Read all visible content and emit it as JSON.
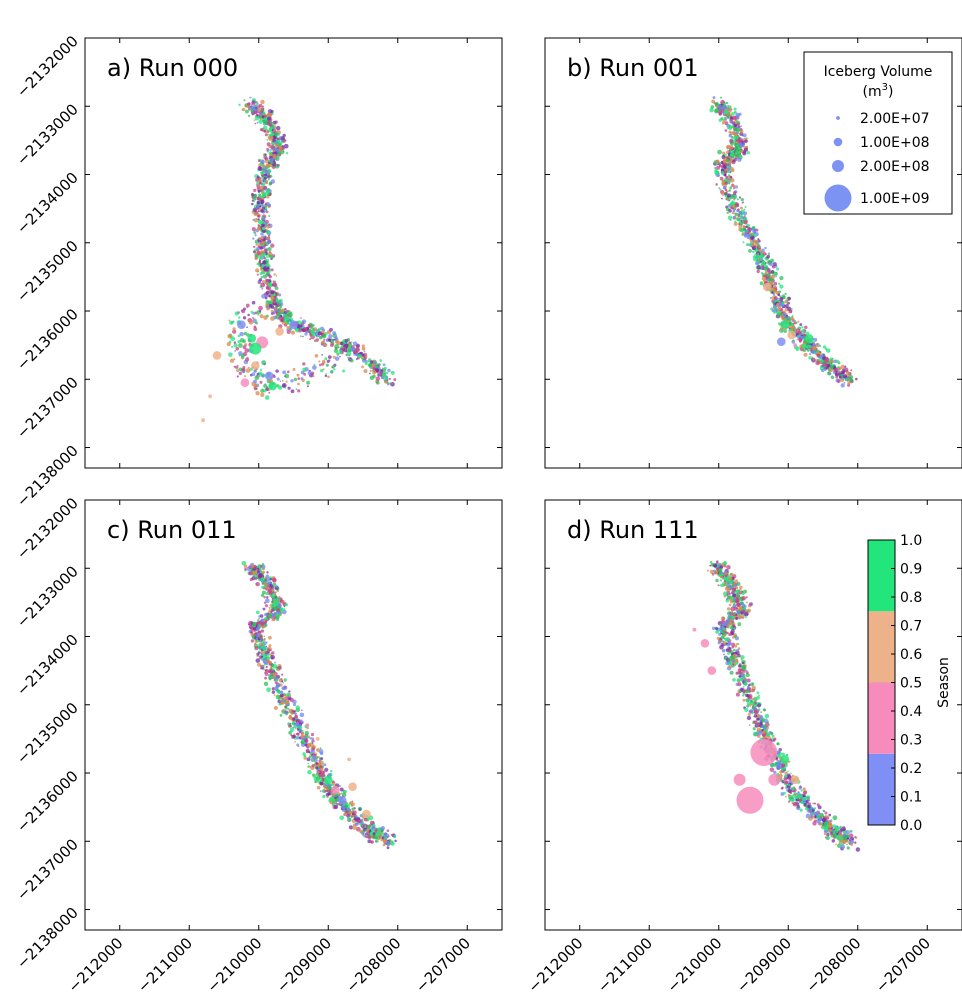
{
  "chart_data": {
    "type": "scatter",
    "axes": {
      "xlim": [
        -212500,
        -206500
      ],
      "ylim": [
        -2138300,
        -2132000
      ],
      "x_ticks": [
        -212000,
        -211000,
        -210000,
        -209000,
        -208000,
        -207000
      ],
      "y_ticks": [
        -2132000,
        -2133000,
        -2134000,
        -2135000,
        -2136000,
        -2137000,
        -2138000
      ],
      "x_tick_labels": [
        "−212000",
        "−211000",
        "−210000",
        "−209000",
        "−208000",
        "−207000"
      ],
      "y_tick_labels": [
        "−2132000",
        "−2133000",
        "−2134000",
        "−2135000",
        "−2136000",
        "−2137000",
        "−2138000"
      ],
      "grid": false
    },
    "panels": [
      {
        "id": "a",
        "title": "a) Run 000",
        "track": [
          [
            -210150,
            -2132960
          ],
          [
            -209900,
            -2133200
          ],
          [
            -209700,
            -2133620
          ],
          [
            -209900,
            -2133900
          ],
          [
            -209980,
            -2134400
          ],
          [
            -209950,
            -2135000
          ],
          [
            -209880,
            -2135500
          ],
          [
            -209800,
            -2135900
          ],
          [
            -209500,
            -2136200
          ],
          [
            -209000,
            -2136400
          ],
          [
            -208500,
            -2136650
          ],
          [
            -208150,
            -2137030
          ]
        ],
        "spur": [
          [
            -209950,
            -2135900
          ],
          [
            -210300,
            -2136300
          ],
          [
            -210200,
            -2136800
          ],
          [
            -209900,
            -2137150
          ],
          [
            -209400,
            -2136950
          ],
          [
            -208800,
            -2136700
          ]
        ],
        "large_icebergs": [
          {
            "x": -209950,
            "y": -2136460,
            "volume": 200000000.0,
            "season": 0.4
          },
          {
            "x": -210050,
            "y": -2136550,
            "volume": 200000000.0,
            "season": 0.85
          },
          {
            "x": -209850,
            "y": -2136950,
            "volume": 100000000.0,
            "season": 0.1
          },
          {
            "x": -210600,
            "y": -2136650,
            "volume": 100000000.0,
            "season": 0.6
          },
          {
            "x": -210250,
            "y": -2136200,
            "volume": 100000000.0,
            "season": 0.1
          },
          {
            "x": -210050,
            "y": -2136800,
            "volume": 100000000.0,
            "season": 0.6
          },
          {
            "x": -209700,
            "y": -2136300,
            "volume": 100000000.0,
            "season": 0.6
          },
          {
            "x": -210100,
            "y": -2136400,
            "volume": 100000000.0,
            "season": 0.9
          },
          {
            "x": -210200,
            "y": -2137050,
            "volume": 100000000.0,
            "season": 0.35
          },
          {
            "x": -209500,
            "y": -2136200,
            "volume": 100000000.0,
            "season": 0.1
          },
          {
            "x": -210700,
            "y": -2137250,
            "volume": 20000000.0,
            "season": 0.6
          },
          {
            "x": -210800,
            "y": -2137600,
            "volume": 20000000.0,
            "season": 0.6
          },
          {
            "x": -209800,
            "y": -2137100,
            "volume": 100000000.0,
            "season": 0.85
          }
        ]
      },
      {
        "id": "b",
        "title": "b) Run 001",
        "track": [
          [
            -210000,
            -2132960
          ],
          [
            -209800,
            -2133200
          ],
          [
            -209700,
            -2133600
          ],
          [
            -209950,
            -2133850
          ],
          [
            -209850,
            -2134300
          ],
          [
            -209600,
            -2134800
          ],
          [
            -209350,
            -2135300
          ],
          [
            -209150,
            -2135800
          ],
          [
            -209000,
            -2136200
          ],
          [
            -208700,
            -2136500
          ],
          [
            -208400,
            -2136800
          ],
          [
            -208100,
            -2137030
          ]
        ],
        "spur": [],
        "large_icebergs": [
          {
            "x": -209050,
            "y": -2136200,
            "volume": 100000000.0,
            "season": 0.85
          },
          {
            "x": -208950,
            "y": -2136350,
            "volume": 100000000.0,
            "season": 0.6
          },
          {
            "x": -209100,
            "y": -2136450,
            "volume": 100000000.0,
            "season": 0.1
          },
          {
            "x": -209300,
            "y": -2135650,
            "volume": 100000000.0,
            "season": 0.6
          },
          {
            "x": -208900,
            "y": -2136500,
            "volume": 20000000.0,
            "season": 0.4
          },
          {
            "x": -208700,
            "y": -2136400,
            "volume": 100000000.0,
            "season": 0.85
          },
          {
            "x": -209450,
            "y": -2135300,
            "volume": 20000000.0,
            "season": 0.1
          }
        ]
      },
      {
        "id": "c",
        "title": "c) Run 011",
        "track": [
          [
            -210100,
            -2132960
          ],
          [
            -209900,
            -2133200
          ],
          [
            -209700,
            -2133600
          ],
          [
            -210050,
            -2133850
          ],
          [
            -209900,
            -2134300
          ],
          [
            -209700,
            -2134800
          ],
          [
            -209450,
            -2135300
          ],
          [
            -209200,
            -2135800
          ],
          [
            -209000,
            -2136250
          ],
          [
            -208700,
            -2136550
          ],
          [
            -208400,
            -2136850
          ],
          [
            -208100,
            -2137030
          ]
        ],
        "spur": [],
        "large_icebergs": [
          {
            "x": -209000,
            "y": -2136100,
            "volume": 100000000.0,
            "season": 0.85
          },
          {
            "x": -208900,
            "y": -2136250,
            "volume": 100000000.0,
            "season": 0.4
          },
          {
            "x": -208800,
            "y": -2136400,
            "volume": 100000000.0,
            "season": 0.1
          },
          {
            "x": -208650,
            "y": -2136200,
            "volume": 100000000.0,
            "season": 0.6
          },
          {
            "x": -208450,
            "y": -2136600,
            "volume": 100000000.0,
            "season": 0.6
          },
          {
            "x": -209150,
            "y": -2135500,
            "volume": 20000000.0,
            "season": 0.6
          },
          {
            "x": -209300,
            "y": -2135300,
            "volume": 20000000.0,
            "season": 0.35
          },
          {
            "x": -208700,
            "y": -2135800,
            "volume": 20000000.0,
            "season": 0.6
          }
        ]
      },
      {
        "id": "d",
        "title": "d) Run 111",
        "track": [
          [
            -210050,
            -2132960
          ],
          [
            -209850,
            -2133200
          ],
          [
            -209650,
            -2133600
          ],
          [
            -209950,
            -2133850
          ],
          [
            -209800,
            -2134300
          ],
          [
            -209600,
            -2134800
          ],
          [
            -209400,
            -2135300
          ],
          [
            -209150,
            -2135800
          ],
          [
            -208950,
            -2136250
          ],
          [
            -208650,
            -2136550
          ],
          [
            -208350,
            -2136850
          ],
          [
            -208100,
            -2137030
          ]
        ],
        "spur": [],
        "large_icebergs": [
          {
            "x": -209350,
            "y": -2135700,
            "volume": 1000000000.0,
            "season": 0.4
          },
          {
            "x": -209700,
            "y": -2136100,
            "volume": 200000000.0,
            "season": 0.35
          },
          {
            "x": -209550,
            "y": -2136400,
            "volume": 1000000000.0,
            "season": 0.4
          },
          {
            "x": -209200,
            "y": -2136100,
            "volume": 200000000.0,
            "season": 0.35
          },
          {
            "x": -209050,
            "y": -2135800,
            "volume": 100000000.0,
            "season": 0.85
          },
          {
            "x": -210200,
            "y": -2134100,
            "volume": 100000000.0,
            "season": 0.35
          },
          {
            "x": -210100,
            "y": -2134500,
            "volume": 100000000.0,
            "season": 0.35
          },
          {
            "x": -210350,
            "y": -2133900,
            "volume": 20000000.0,
            "season": 0.35
          },
          {
            "x": -208900,
            "y": -2136100,
            "volume": 100000000.0,
            "season": 0.6
          }
        ]
      }
    ],
    "size_legend": {
      "title": "Iceberg Volume",
      "unit_base": "(m",
      "unit_exp": "3",
      "unit_close": ")",
      "entries": [
        {
          "label": "2.00E+07",
          "value": 20000000.0
        },
        {
          "label": "1.00E+08",
          "value": 100000000.0
        },
        {
          "label": "2.00E+08",
          "value": 200000000.0
        },
        {
          "label": "1.00E+09",
          "value": 1000000000.0
        }
      ],
      "color": "#6f87f2"
    },
    "colorbar": {
      "label": "Season",
      "range": [
        0.0,
        1.0
      ],
      "tick_values": [
        0.0,
        0.1,
        0.2,
        0.3,
        0.4,
        0.5,
        0.6,
        0.7,
        0.8,
        0.9,
        1.0
      ],
      "tick_labels": [
        "0.0",
        "0.1",
        "0.2",
        "0.3",
        "0.4",
        "0.5",
        "0.6",
        "0.7",
        "0.8",
        "0.9",
        "1.0"
      ],
      "bands": [
        {
          "from": 0.0,
          "to": 0.25,
          "color": "#7f8ff5"
        },
        {
          "from": 0.25,
          "to": 0.5,
          "color": "#f78cbc"
        },
        {
          "from": 0.5,
          "to": 0.75,
          "color": "#eeb28a"
        },
        {
          "from": 0.75,
          "to": 1.0,
          "color": "#22e67c"
        }
      ]
    }
  }
}
